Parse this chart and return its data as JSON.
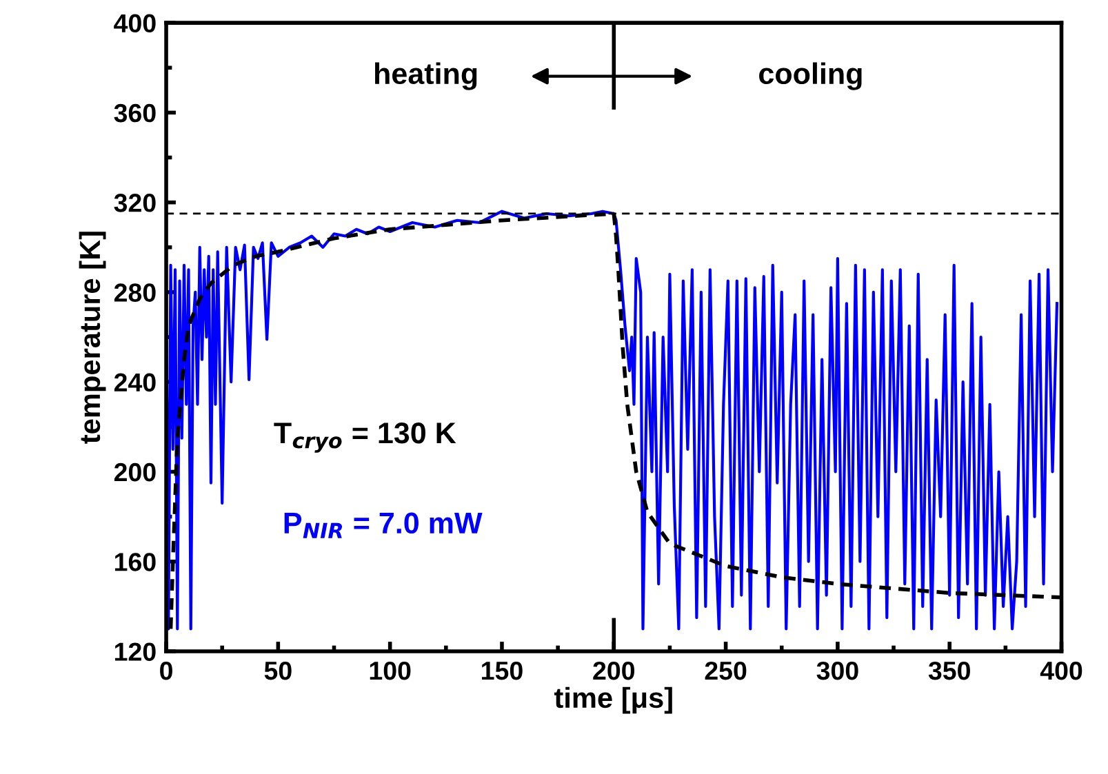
{
  "chart_data": {
    "type": "line",
    "xlabel": "time [μs]",
    "ylabel": "temperature [K]",
    "xlim": [
      0,
      400
    ],
    "ylim": [
      120,
      400
    ],
    "xticks": [
      0,
      {
        "value": 25,
        "label": null
      },
      50,
      {
        "value": 75,
        "label": null
      },
      100,
      {
        "value": 125,
        "label": null
      },
      150,
      {
        "value": 175,
        "label": null
      },
      200,
      {
        "value": 225,
        "label": null
      },
      250,
      {
        "value": 275,
        "label": null
      },
      300,
      {
        "value": 325,
        "label": null
      },
      350,
      {
        "value": 375,
        "label": null
      },
      400
    ],
    "yticks": [
      120,
      {
        "value": 140,
        "label": null
      },
      160,
      {
        "value": 180,
        "label": null
      },
      200,
      {
        "value": 220,
        "label": null
      },
      240,
      {
        "value": 260,
        "label": null
      },
      280,
      {
        "value": 300,
        "label": null
      },
      320,
      {
        "value": 340,
        "label": null
      },
      360,
      {
        "value": 380,
        "label": null
      },
      400
    ],
    "grid": false,
    "legend": false,
    "marker": "none",
    "ref_lines": [
      {
        "axis": "y",
        "value": 315,
        "label": null,
        "color": "#000000",
        "line_style": "dashed"
      }
    ],
    "annotations": [
      "heating",
      "cooling",
      "T$_{cryo}$ = 130 K",
      "P$_{NIR}$ = 7.0 mW"
    ],
    "series": [
      {
        "color": "#0000ff",
        "line_style": "solid",
        "x": [
          0,
          1,
          2,
          3,
          4,
          5,
          6,
          7,
          8,
          9,
          10,
          11,
          12,
          13,
          14,
          15,
          16,
          17,
          18,
          19,
          20,
          21,
          22,
          23,
          25,
          27,
          29,
          31,
          33,
          35,
          37,
          39,
          41,
          43,
          45,
          47,
          49,
          50,
          55,
          60,
          65,
          70,
          75,
          80,
          85,
          90,
          95,
          100,
          110,
          120,
          130,
          140,
          150,
          160,
          170,
          180,
          190,
          195,
          200,
          201,
          203,
          205,
          207,
          208,
          209,
          210,
          212,
          213,
          215,
          217,
          218,
          220,
          222,
          224,
          225,
          227,
          229,
          231,
          233,
          235,
          237,
          239,
          241,
          243,
          245,
          247,
          249,
          251,
          253,
          255,
          257,
          259,
          261,
          263,
          265,
          267,
          269,
          271,
          273,
          275,
          277,
          279,
          281,
          283,
          285,
          287,
          289,
          291,
          293,
          295,
          297,
          299,
          300,
          302,
          304,
          306,
          308,
          310,
          312,
          314,
          316,
          318,
          320,
          322,
          324,
          326,
          328,
          330,
          332,
          334,
          336,
          338,
          340,
          342,
          344,
          346,
          348,
          350,
          352,
          354,
          356,
          358,
          360,
          362,
          364,
          366,
          368,
          370,
          372,
          374,
          376,
          378,
          380,
          382,
          384,
          386,
          388,
          390,
          392,
          394,
          396,
          398
        ],
        "values": [
          280,
          130,
          292,
          210,
          290,
          130,
          285,
          215,
          292,
          230,
          290,
          130,
          265,
          280,
          230,
          300,
          250,
          290,
          260,
          296,
          195,
          290,
          230,
          298,
          186,
          300,
          240,
          300,
          290,
          301,
          241,
          300,
          295,
          302,
          259,
          302,
          298,
          296,
          300,
          302,
          305,
          300,
          306,
          305,
          308,
          306,
          309,
          307,
          311,
          309,
          312,
          311,
          316,
          313,
          315,
          314,
          315,
          316,
          315,
          312,
          290,
          265,
          245,
          260,
          230,
          295,
          280,
          130,
          260,
          200,
          262,
          150,
          260,
          200,
          288,
          185,
          130,
          285,
          210,
          290,
          135,
          280,
          140,
          290,
          180,
          130,
          230,
          285,
          140,
          285,
          145,
          286,
          130,
          282,
          200,
          287,
          140,
          292,
          195,
          280,
          130,
          230,
          270,
          140,
          285,
          160,
          270,
          130,
          250,
          145,
          282,
          200,
          295,
          130,
          275,
          140,
          292,
          160,
          290,
          130,
          280,
          180,
          290,
          135,
          285,
          200,
          290,
          150,
          265,
          130,
          288,
          140,
          250,
          130,
          232,
          180,
          270,
          145,
          292,
          135,
          240,
          150,
          275,
          130,
          260,
          145,
          230,
          130,
          200,
          140,
          180,
          130,
          160,
          270,
          140,
          285,
          180,
          288,
          150,
          290,
          200,
          275
        ]
      },
      {
        "color": "#000000",
        "line_style": "dashed",
        "x": [
          2,
          3,
          5,
          8,
          10,
          15,
          20,
          30,
          40,
          50,
          75,
          100,
          150,
          200
        ],
        "values": [
          130,
          160,
          215,
          250,
          265,
          277,
          284,
          292,
          296,
          298,
          304,
          308,
          312,
          315
        ]
      },
      {
        "color": "#000000",
        "line_style": "dashed",
        "x": [
          200,
          201,
          202,
          204,
          206,
          210,
          215,
          225,
          250,
          275,
          300,
          350,
          400
        ],
        "values": [
          315,
          305,
          290,
          255,
          230,
          200,
          182,
          168,
          158,
          153,
          150,
          146,
          144
        ]
      }
    ]
  }
}
